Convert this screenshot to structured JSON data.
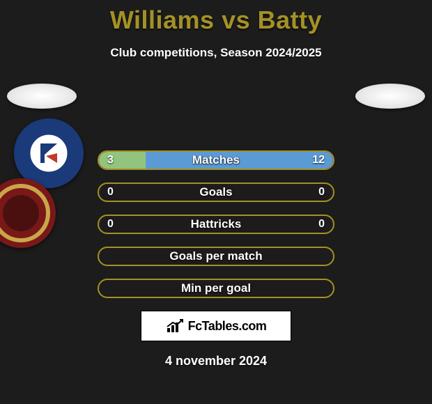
{
  "title": "Williams vs Batty",
  "subtitle": "Club competitions, Season 2024/2025",
  "date": "4 november 2024",
  "branding": {
    "text": "FcTables.com"
  },
  "colors": {
    "accent": "#a49126",
    "accent_border": "#b8a22c",
    "background": "#1c1c1c",
    "text_light": "#ffffff"
  },
  "players": {
    "left": {
      "name": "Williams",
      "club": "Chesterfield",
      "crest_primary": "#1a3a7a",
      "crest_secondary": "#ffffff",
      "crest_accent": "#c0392b"
    },
    "right": {
      "name": "Batty",
      "club": "Accrington Stanley",
      "crest_primary": "#7a1818",
      "crest_secondary": "#c9a64a"
    }
  },
  "stats": [
    {
      "label": "Matches",
      "left_value": "3",
      "right_value": "12",
      "left_pct": 20,
      "right_pct": 80,
      "left_color": "#93c47d",
      "right_color": "#5b9bd5",
      "border_color": "#a49126"
    },
    {
      "label": "Goals",
      "left_value": "0",
      "right_value": "0",
      "left_pct": 0,
      "right_pct": 0,
      "left_color": "#93c47d",
      "right_color": "#5b9bd5",
      "border_color": "#a49126"
    },
    {
      "label": "Hattricks",
      "left_value": "0",
      "right_value": "0",
      "left_pct": 0,
      "right_pct": 0,
      "left_color": "#93c47d",
      "right_color": "#5b9bd5",
      "border_color": "#a49126"
    },
    {
      "label": "Goals per match",
      "left_value": "",
      "right_value": "",
      "left_pct": 0,
      "right_pct": 0,
      "left_color": "#93c47d",
      "right_color": "#5b9bd5",
      "border_color": "#a49126"
    },
    {
      "label": "Min per goal",
      "left_value": "",
      "right_value": "",
      "left_pct": 0,
      "right_pct": 0,
      "left_color": "#93c47d",
      "right_color": "#5b9bd5",
      "border_color": "#a49126"
    }
  ]
}
